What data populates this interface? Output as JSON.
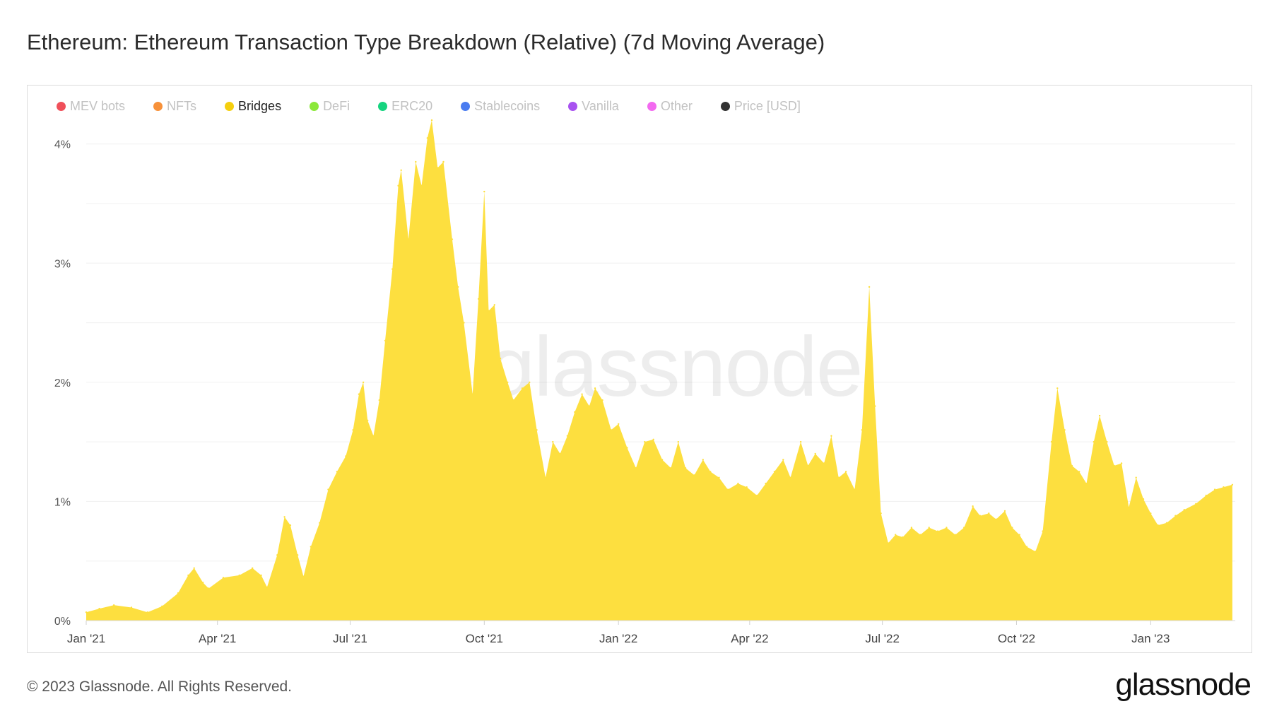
{
  "title": "Ethereum: Ethereum Transaction Type Breakdown (Relative) (7d Moving Average)",
  "footer": "© 2023 Glassnode. All Rights Reserved.",
  "brand": "glassnode",
  "watermark": "glassnode",
  "legend": [
    {
      "label": "MEV bots",
      "color": "#f0505a",
      "active": false
    },
    {
      "label": "NFTs",
      "color": "#f7913a",
      "active": false
    },
    {
      "label": "Bridges",
      "color": "#f5cf0e",
      "active": true
    },
    {
      "label": "DeFi",
      "color": "#8ce83a",
      "active": false
    },
    {
      "label": "ERC20",
      "color": "#16d47f",
      "active": false
    },
    {
      "label": "Stablecoins",
      "color": "#4a7cf0",
      "active": false
    },
    {
      "label": "Vanilla",
      "color": "#a852f0",
      "active": false
    },
    {
      "label": "Other",
      "color": "#f36af0",
      "active": false
    },
    {
      "label": "Price [USD]",
      "color": "#333333",
      "active": false
    }
  ],
  "chart_data": {
    "type": "area",
    "title": "Ethereum: Ethereum Transaction Type Breakdown (Relative) (7d Moving Average)",
    "xlabel": "",
    "ylabel": "",
    "ylim": [
      0,
      4.2
    ],
    "xlim": [
      "2021-01-01",
      "2023-02-28"
    ],
    "y_ticks": [
      0,
      1,
      2,
      3,
      4
    ],
    "y_tick_labels": [
      "0%",
      "1%",
      "2%",
      "3%",
      "4%"
    ],
    "x_ticks": [
      "2021-01-01",
      "2021-04-01",
      "2021-07-01",
      "2021-10-01",
      "2022-01-01",
      "2022-04-01",
      "2022-07-01",
      "2022-10-01",
      "2023-01-01"
    ],
    "x_tick_labels": [
      "Jan '21",
      "Apr '21",
      "Jul '21",
      "Oct '21",
      "Jan '22",
      "Apr '22",
      "Jul '22",
      "Oct '22",
      "Jan '23"
    ],
    "grid": true,
    "legend_position": "top-left",
    "fill_color": "#fddf3f",
    "series": [
      {
        "name": "Bridges",
        "points": [
          [
            "2021-01-01",
            0.07
          ],
          [
            "2021-01-10",
            0.1
          ],
          [
            "2021-01-20",
            0.13
          ],
          [
            "2021-02-01",
            0.11
          ],
          [
            "2021-02-12",
            0.07
          ],
          [
            "2021-02-22",
            0.12
          ],
          [
            "2021-03-05",
            0.23
          ],
          [
            "2021-03-12",
            0.38
          ],
          [
            "2021-03-16",
            0.44
          ],
          [
            "2021-03-22",
            0.32
          ],
          [
            "2021-03-26",
            0.27
          ],
          [
            "2021-04-05",
            0.36
          ],
          [
            "2021-04-16",
            0.38
          ],
          [
            "2021-04-25",
            0.44
          ],
          [
            "2021-05-01",
            0.38
          ],
          [
            "2021-05-05",
            0.28
          ],
          [
            "2021-05-12",
            0.55
          ],
          [
            "2021-05-17",
            0.87
          ],
          [
            "2021-05-21",
            0.8
          ],
          [
            "2021-05-26",
            0.55
          ],
          [
            "2021-05-30",
            0.37
          ],
          [
            "2021-06-04",
            0.62
          ],
          [
            "2021-06-10",
            0.82
          ],
          [
            "2021-06-16",
            1.1
          ],
          [
            "2021-06-22",
            1.25
          ],
          [
            "2021-06-28",
            1.38
          ],
          [
            "2021-07-03",
            1.6
          ],
          [
            "2021-07-07",
            1.9
          ],
          [
            "2021-07-10",
            2.0
          ],
          [
            "2021-07-13",
            1.68
          ],
          [
            "2021-07-17",
            1.55
          ],
          [
            "2021-07-21",
            1.85
          ],
          [
            "2021-07-25",
            2.35
          ],
          [
            "2021-07-30",
            2.95
          ],
          [
            "2021-08-03",
            3.65
          ],
          [
            "2021-08-05",
            3.78
          ],
          [
            "2021-08-10",
            3.2
          ],
          [
            "2021-08-15",
            3.85
          ],
          [
            "2021-08-19",
            3.65
          ],
          [
            "2021-08-23",
            4.05
          ],
          [
            "2021-08-26",
            4.2
          ],
          [
            "2021-08-30",
            3.8
          ],
          [
            "2021-09-03",
            3.85
          ],
          [
            "2021-09-09",
            3.2
          ],
          [
            "2021-09-13",
            2.8
          ],
          [
            "2021-09-17",
            2.5
          ],
          [
            "2021-09-23",
            1.9
          ],
          [
            "2021-09-27",
            2.7
          ],
          [
            "2021-10-01",
            3.6
          ],
          [
            "2021-10-04",
            2.6
          ],
          [
            "2021-10-08",
            2.65
          ],
          [
            "2021-10-12",
            2.2
          ],
          [
            "2021-10-17",
            2.0
          ],
          [
            "2021-10-21",
            1.85
          ],
          [
            "2021-10-27",
            1.95
          ],
          [
            "2021-11-01",
            2.0
          ],
          [
            "2021-11-06",
            1.6
          ],
          [
            "2021-11-12",
            1.2
          ],
          [
            "2021-11-17",
            1.5
          ],
          [
            "2021-11-22",
            1.4
          ],
          [
            "2021-11-27",
            1.55
          ],
          [
            "2021-12-02",
            1.75
          ],
          [
            "2021-12-07",
            1.9
          ],
          [
            "2021-12-12",
            1.8
          ],
          [
            "2021-12-16",
            1.95
          ],
          [
            "2021-12-21",
            1.85
          ],
          [
            "2021-12-27",
            1.6
          ],
          [
            "2022-01-01",
            1.65
          ],
          [
            "2022-01-07",
            1.45
          ],
          [
            "2022-01-13",
            1.28
          ],
          [
            "2022-01-19",
            1.5
          ],
          [
            "2022-01-25",
            1.52
          ],
          [
            "2022-01-31",
            1.35
          ],
          [
            "2022-02-06",
            1.28
          ],
          [
            "2022-02-11",
            1.5
          ],
          [
            "2022-02-16",
            1.28
          ],
          [
            "2022-02-22",
            1.22
          ],
          [
            "2022-02-28",
            1.35
          ],
          [
            "2022-03-05",
            1.25
          ],
          [
            "2022-03-11",
            1.2
          ],
          [
            "2022-03-17",
            1.1
          ],
          [
            "2022-03-24",
            1.15
          ],
          [
            "2022-03-30",
            1.12
          ],
          [
            "2022-04-06",
            1.05
          ],
          [
            "2022-04-12",
            1.15
          ],
          [
            "2022-04-18",
            1.25
          ],
          [
            "2022-04-24",
            1.35
          ],
          [
            "2022-04-29",
            1.2
          ],
          [
            "2022-05-06",
            1.5
          ],
          [
            "2022-05-11",
            1.3
          ],
          [
            "2022-05-16",
            1.4
          ],
          [
            "2022-05-22",
            1.32
          ],
          [
            "2022-05-27",
            1.55
          ],
          [
            "2022-06-01",
            1.2
          ],
          [
            "2022-06-06",
            1.25
          ],
          [
            "2022-06-12",
            1.1
          ],
          [
            "2022-06-17",
            1.6
          ],
          [
            "2022-06-22",
            2.8
          ],
          [
            "2022-06-26",
            1.8
          ],
          [
            "2022-06-30",
            0.9
          ],
          [
            "2022-07-05",
            0.65
          ],
          [
            "2022-07-10",
            0.72
          ],
          [
            "2022-07-15",
            0.7
          ],
          [
            "2022-07-21",
            0.78
          ],
          [
            "2022-07-27",
            0.72
          ],
          [
            "2022-08-02",
            0.78
          ],
          [
            "2022-08-08",
            0.75
          ],
          [
            "2022-08-14",
            0.78
          ],
          [
            "2022-08-20",
            0.72
          ],
          [
            "2022-08-26",
            0.78
          ],
          [
            "2022-09-01",
            0.96
          ],
          [
            "2022-09-06",
            0.88
          ],
          [
            "2022-09-12",
            0.9
          ],
          [
            "2022-09-17",
            0.85
          ],
          [
            "2022-09-23",
            0.92
          ],
          [
            "2022-09-28",
            0.78
          ],
          [
            "2022-10-03",
            0.72
          ],
          [
            "2022-10-08",
            0.62
          ],
          [
            "2022-10-14",
            0.58
          ],
          [
            "2022-10-19",
            0.75
          ],
          [
            "2022-10-25",
            1.5
          ],
          [
            "2022-10-29",
            1.95
          ],
          [
            "2022-11-03",
            1.6
          ],
          [
            "2022-11-08",
            1.3
          ],
          [
            "2022-11-13",
            1.25
          ],
          [
            "2022-11-18",
            1.15
          ],
          [
            "2022-11-23",
            1.5
          ],
          [
            "2022-11-27",
            1.72
          ],
          [
            "2022-12-02",
            1.5
          ],
          [
            "2022-12-07",
            1.3
          ],
          [
            "2022-12-12",
            1.32
          ],
          [
            "2022-12-17",
            0.95
          ],
          [
            "2022-12-22",
            1.2
          ],
          [
            "2022-12-27",
            1.02
          ],
          [
            "2023-01-01",
            0.9
          ],
          [
            "2023-01-06",
            0.8
          ],
          [
            "2023-01-12",
            0.82
          ],
          [
            "2023-01-18",
            0.88
          ],
          [
            "2023-01-24",
            0.93
          ],
          [
            "2023-02-01",
            0.98
          ],
          [
            "2023-02-08",
            1.05
          ],
          [
            "2023-02-14",
            1.1
          ],
          [
            "2023-02-20",
            1.12
          ],
          [
            "2023-02-26",
            1.14
          ]
        ]
      }
    ]
  }
}
